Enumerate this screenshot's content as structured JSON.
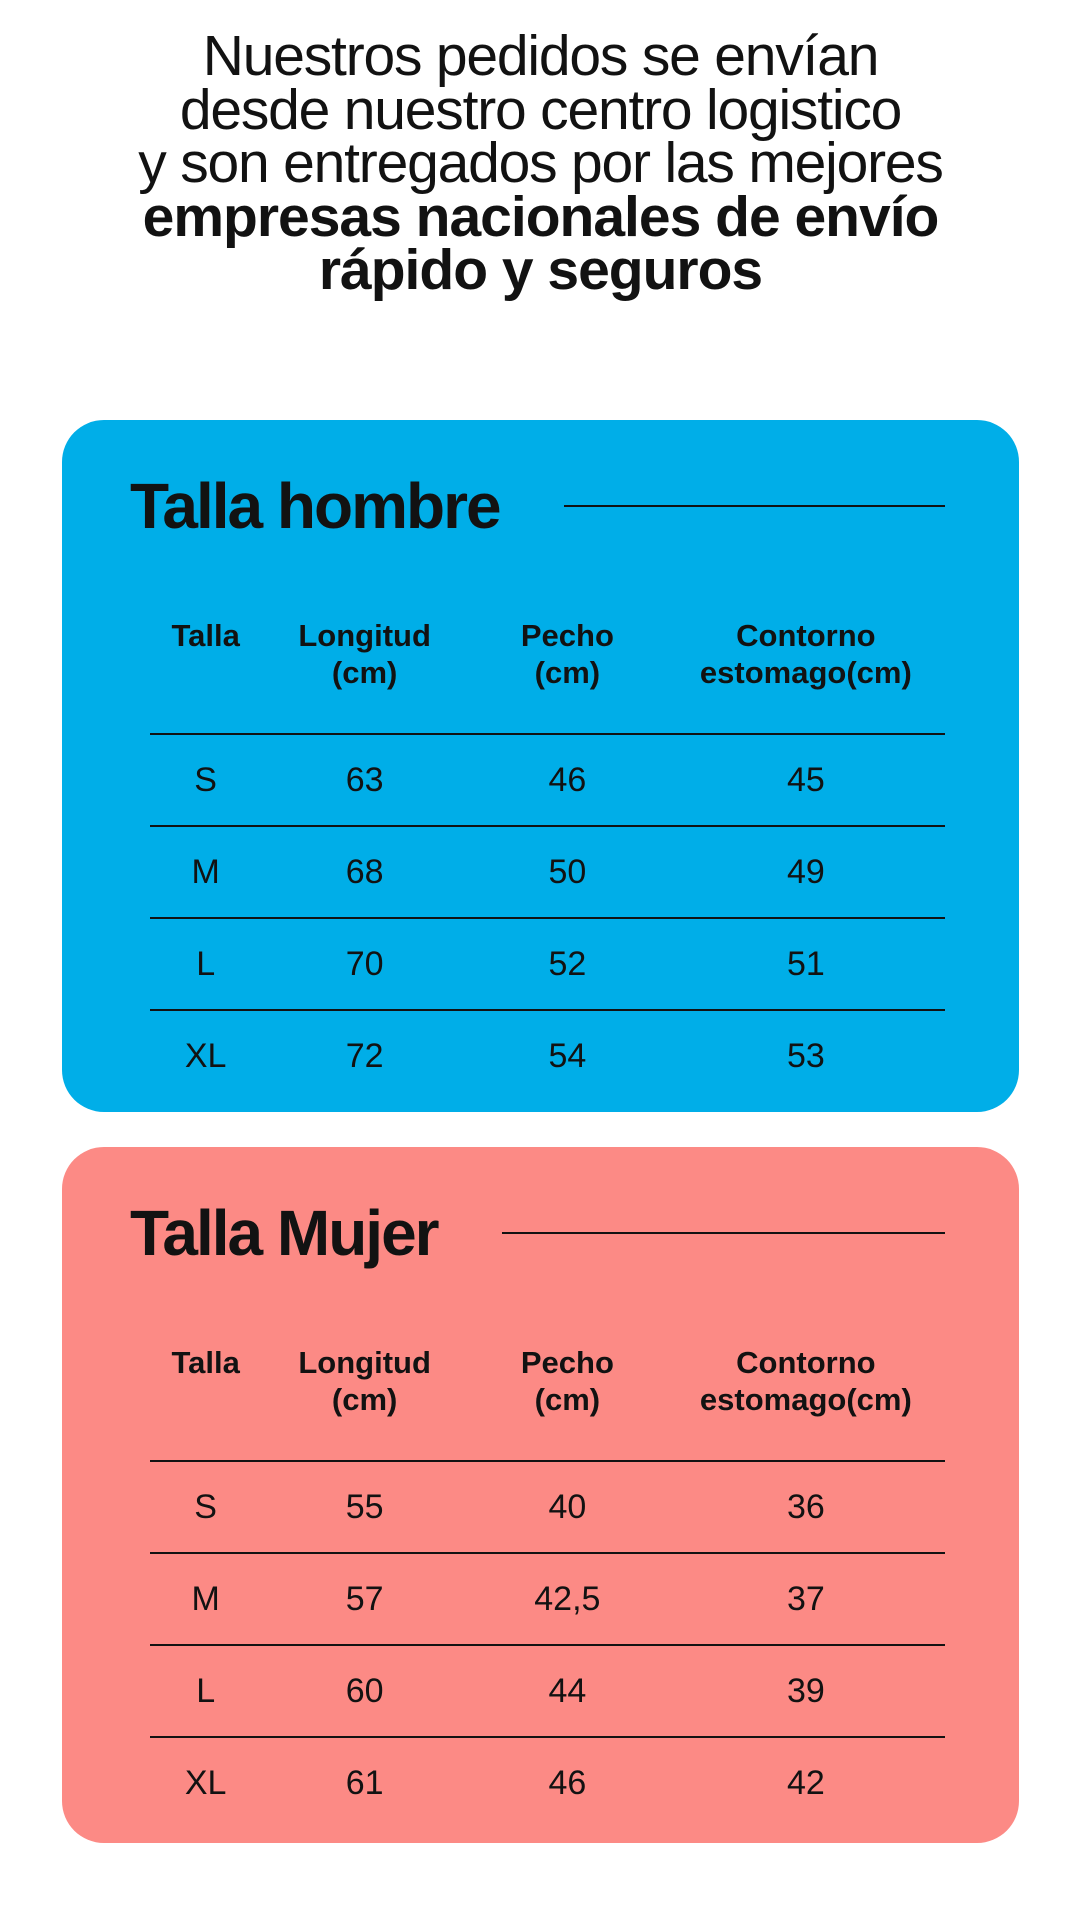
{
  "intro": {
    "lines": [
      {
        "text": "Nuestros pedidos se envían",
        "bold": false
      },
      {
        "text": "desde nuestro centro logistico",
        "bold": false
      },
      {
        "text": "y son entregados por las mejores",
        "bold": false
      },
      {
        "text": "empresas nacionales de envío",
        "bold": true
      },
      {
        "text": "rápido y seguros",
        "bold": true
      }
    ]
  },
  "colors": {
    "men_card_bg": "#00AEE8",
    "women_card_bg": "#FC8A85",
    "text": "#121212"
  },
  "cards": [
    {
      "title": "Talla hombre",
      "bg_color": "#00AEE8",
      "columns": [
        {
          "line1": "Talla",
          "line2": ""
        },
        {
          "line1": "Longitud",
          "line2": "(cm)"
        },
        {
          "line1": "Pecho",
          "line2": "(cm)"
        },
        {
          "line1": "Contorno",
          "line2": "estomago(cm)"
        }
      ],
      "rows": [
        {
          "talla": "S",
          "longitud": "63",
          "pecho": "46",
          "contorno": "45"
        },
        {
          "talla": "M",
          "longitud": "68",
          "pecho": "50",
          "contorno": "49"
        },
        {
          "talla": "L",
          "longitud": "70",
          "pecho": "52",
          "contorno": "51"
        },
        {
          "talla": "XL",
          "longitud": "72",
          "pecho": "54",
          "contorno": "53"
        }
      ]
    },
    {
      "title": "Talla Mujer",
      "bg_color": "#FC8A85",
      "columns": [
        {
          "line1": "Talla",
          "line2": ""
        },
        {
          "line1": "Longitud",
          "line2": "(cm)"
        },
        {
          "line1": "Pecho",
          "line2": "(cm)"
        },
        {
          "line1": "Contorno",
          "line2": "estomago(cm)"
        }
      ],
      "rows": [
        {
          "talla": "S",
          "longitud": "55",
          "pecho": "40",
          "contorno": "36"
        },
        {
          "talla": "M",
          "longitud": "57",
          "pecho": "42,5",
          "contorno": "37"
        },
        {
          "talla": "L",
          "longitud": "60",
          "pecho": "44",
          "contorno": "39"
        },
        {
          "talla": "XL",
          "longitud": "61",
          "pecho": "46",
          "contorno": "42"
        }
      ]
    }
  ]
}
